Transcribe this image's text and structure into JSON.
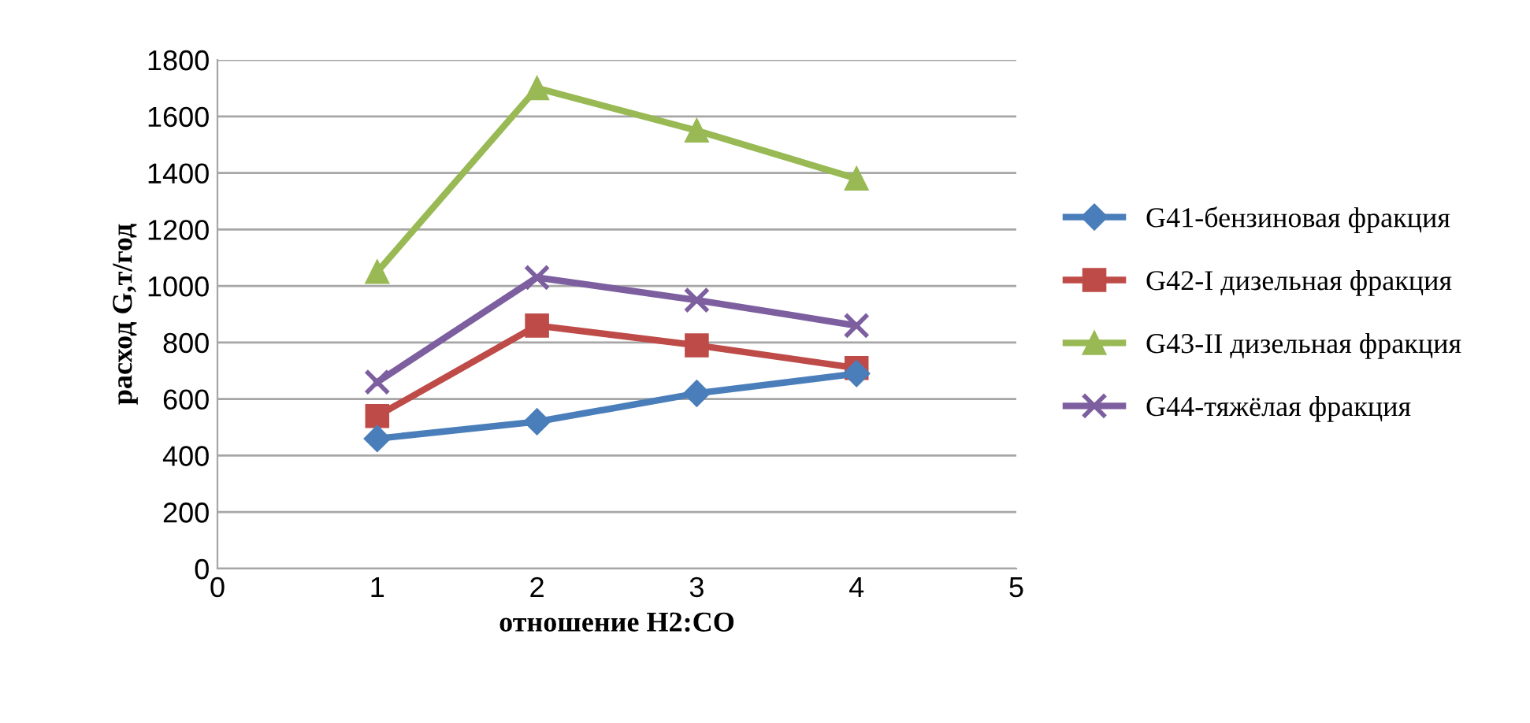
{
  "chart_data": {
    "type": "line",
    "xlabel": "отношение H2:CO",
    "ylabel": "расход G,т/год",
    "x": [
      1,
      2,
      3,
      4
    ],
    "xlim": [
      0,
      5
    ],
    "xticks": [
      0,
      1,
      2,
      3,
      4,
      5
    ],
    "ylim": [
      0,
      1800
    ],
    "yticks": [
      0,
      200,
      400,
      600,
      800,
      1000,
      1200,
      1400,
      1600,
      1800
    ],
    "grid": "y",
    "legend": "right",
    "line_style": "solid",
    "series": [
      {
        "name": "G41-бензиновая фракция",
        "color": "#4a7ebb",
        "marker": "diamond",
        "values": [
          460,
          520,
          620,
          690
        ]
      },
      {
        "name": "G42-I дизельная фракция",
        "color": "#be4b48",
        "marker": "square",
        "values": [
          540,
          860,
          790,
          710
        ]
      },
      {
        "name": "G43-II дизельная фракция",
        "color": "#98b954",
        "marker": "triangle",
        "values": [
          1050,
          1700,
          1550,
          1380
        ]
      },
      {
        "name": "G44-тяжёлая фракция",
        "color": "#7d5fa0",
        "marker": "cross",
        "values": [
          660,
          1030,
          950,
          860
        ]
      }
    ]
  }
}
